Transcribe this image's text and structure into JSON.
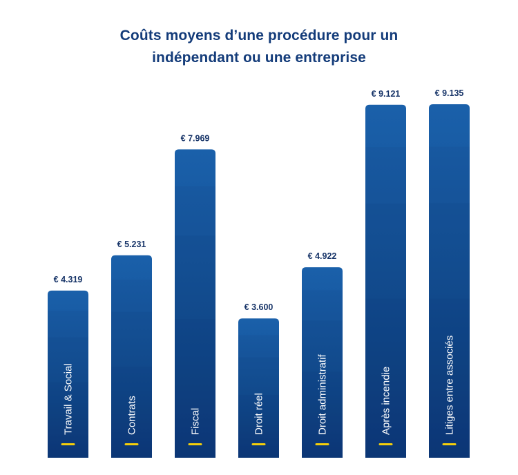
{
  "title_line1": "Coûts moyens d’une procédure pour un",
  "title_line2": "indépendant ou une entreprise",
  "colors": {
    "title": "#143c7a",
    "bar_top": "#1a5fa8",
    "bar_bottom": "#0b3d7e",
    "marker": "#f5cf0a",
    "value_text": "#173468"
  },
  "chart_data": {
    "type": "bar",
    "title": "Coûts moyens d’une procédure pour un indépendant ou une entreprise",
    "categories": [
      "Travail & Social",
      "Contrats",
      "Fiscal",
      "Droit réel",
      "Droit administratif",
      "Après incendie",
      "Litiges entre associés"
    ],
    "values": [
      4319,
      5231,
      7969,
      3600,
      4922,
      9121,
      9135
    ],
    "value_labels": [
      "€ 4.319",
      "€ 5.231",
      "€ 7.969",
      "€ 3.600",
      "€ 4.922",
      "€ 9.121",
      "€ 9.135"
    ],
    "currency": "€",
    "xlabel": "",
    "ylabel": "",
    "grid": false,
    "legend": "none"
  }
}
